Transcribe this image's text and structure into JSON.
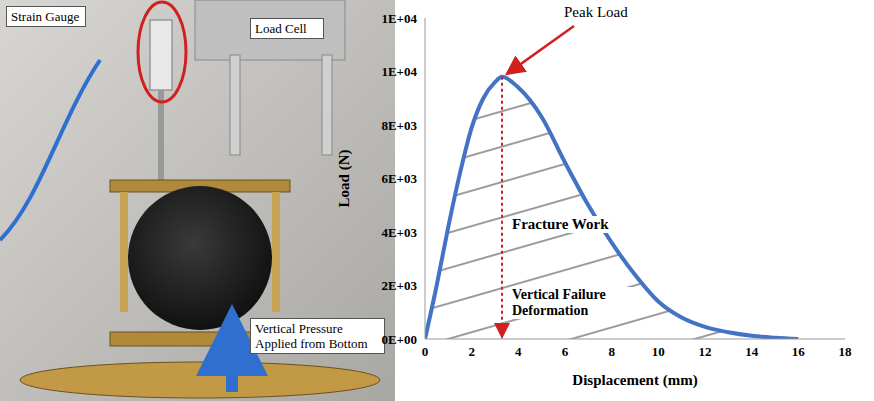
{
  "chart_data": {
    "type": "area",
    "x_label": "Displacement (mm)",
    "y_label": "Load (N)",
    "annotations": [
      "Peak Load",
      "Fracture Work",
      "Vertical Failure Deformation"
    ],
    "x": [
      0,
      0.5,
      1,
      1.5,
      2,
      2.5,
      3,
      3.3,
      4,
      5,
      6,
      7,
      8,
      9,
      10,
      11,
      12,
      13,
      14,
      15,
      16
    ],
    "values": [
      0,
      2000,
      4200,
      6200,
      7900,
      9000,
      9600,
      9800,
      9400,
      8300,
      6600,
      5000,
      3600,
      2400,
      1400,
      800,
      450,
      250,
      120,
      50,
      0
    ],
    "color": "#4472c4",
    "xlim": [
      0,
      18
    ],
    "xticks": [
      0,
      2,
      4,
      6,
      8,
      10,
      12,
      14,
      16,
      18
    ],
    "ylim": [
      0,
      12000
    ],
    "yticks": [
      {
        "value": 0,
        "label": "0E+00"
      },
      {
        "value": 2000,
        "label": "2E+03"
      },
      {
        "value": 4000,
        "label": "4E+03"
      },
      {
        "value": 6000,
        "label": "6E+03"
      },
      {
        "value": 8000,
        "label": "8E+03"
      },
      {
        "value": 10000,
        "label": "1E+04"
      },
      {
        "value": 12000,
        "label": "1E+04"
      }
    ],
    "grid": false
  },
  "photo": {
    "labels": {
      "strain_gauge": "Strain Gauge",
      "load_cell": "Load Cell",
      "pressure": "Vertical Pressure Applied from Bottom"
    }
  }
}
